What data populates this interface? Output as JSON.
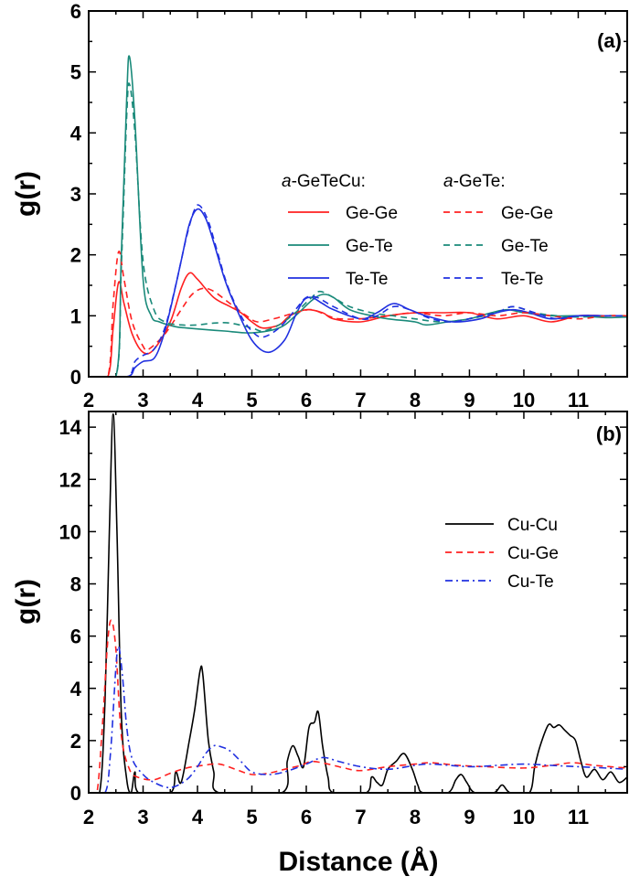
{
  "chart_data": [
    {
      "type": "line",
      "panel_label": "(a)",
      "ylabel": "g(r)",
      "xlim": [
        2,
        11.9
      ],
      "ylim": [
        0,
        6
      ],
      "xticks": [
        "2",
        "3",
        "4",
        "5",
        "6",
        "7",
        "8",
        "9",
        "10",
        "11"
      ],
      "yticks": [
        "0",
        "1",
        "2",
        "3",
        "4",
        "5",
        "6"
      ],
      "legend_placement": "top-right",
      "legend_groups": [
        {
          "prefix": "a",
          "title": "-GeTeCu:"
        },
        {
          "prefix": "a",
          "title": "-GeTe:"
        }
      ],
      "series": [
        {
          "name": "Ge-Ge",
          "group": 0,
          "color": "#ff2020",
          "dash": "solid",
          "x": [
            2,
            2.35,
            2.45,
            2.55,
            2.65,
            2.8,
            3.0,
            3.2,
            3.5,
            3.7,
            3.85,
            4.0,
            4.3,
            4.6,
            4.8,
            5.0,
            5.2,
            5.5,
            5.7,
            6.0,
            6.3,
            6.5,
            7.0,
            7.5,
            8.0,
            8.5,
            9.0,
            9.5,
            10.0,
            10.5,
            11.0,
            11.5,
            11.9
          ],
          "y": [
            0,
            0,
            0.8,
            1.55,
            1.2,
            0.7,
            0.4,
            0.45,
            0.9,
            1.45,
            1.7,
            1.6,
            1.3,
            1.15,
            1.05,
            0.9,
            0.8,
            0.85,
            1.0,
            1.1,
            1.05,
            0.95,
            0.9,
            1.0,
            1.05,
            1.05,
            1.05,
            0.95,
            1.0,
            0.9,
            1.0,
            1.0,
            1.0
          ]
        },
        {
          "name": "Ge-Te",
          "group": 0,
          "color": "#1a8a7a",
          "dash": "solid",
          "x": [
            2,
            2.5,
            2.6,
            2.7,
            2.75,
            2.85,
            3.0,
            3.15,
            3.3,
            3.6,
            3.8,
            4.2,
            4.5,
            5.0,
            5.5,
            5.8,
            6.1,
            6.3,
            6.5,
            6.8,
            7.2,
            7.5,
            8.0,
            8.2,
            8.6,
            9.0,
            9.4,
            9.7,
            10.0,
            10.5,
            11.0,
            11.5,
            11.9
          ],
          "y": [
            0,
            0,
            2.0,
            4.6,
            5.25,
            4.2,
            1.6,
            1.0,
            0.9,
            0.82,
            0.8,
            0.77,
            0.75,
            0.72,
            0.8,
            1.0,
            1.25,
            1.35,
            1.3,
            1.1,
            1.0,
            0.95,
            0.9,
            0.85,
            0.9,
            0.95,
            1.05,
            1.1,
            1.05,
            1.0,
            1.0,
            0.97,
            0.98
          ]
        },
        {
          "name": "Te-Te",
          "group": 0,
          "color": "#2030e0",
          "dash": "solid",
          "x": [
            2,
            2.7,
            2.85,
            3.0,
            3.2,
            3.35,
            3.5,
            3.7,
            3.85,
            4.0,
            4.15,
            4.3,
            4.5,
            4.7,
            5.0,
            5.3,
            5.6,
            5.8,
            5.95,
            6.1,
            6.3,
            6.5,
            7.0,
            7.3,
            7.6,
            7.9,
            8.2,
            8.7,
            9.2,
            9.5,
            9.8,
            10.1,
            10.5,
            11.0,
            11.5,
            11.9
          ],
          "y": [
            0,
            0,
            0.15,
            0.25,
            0.3,
            0.6,
            1.1,
            1.9,
            2.5,
            2.75,
            2.6,
            2.2,
            1.6,
            1.15,
            0.6,
            0.4,
            0.6,
            1.0,
            1.25,
            1.3,
            1.2,
            1.1,
            0.95,
            1.05,
            1.2,
            1.1,
            1.0,
            0.9,
            0.95,
            1.05,
            1.1,
            1.05,
            0.95,
            1.0,
            1.0,
            1.0
          ]
        },
        {
          "name": "Ge-Ge",
          "group": 1,
          "color": "#ff2020",
          "dash": "dashed",
          "x": [
            2,
            2.35,
            2.45,
            2.55,
            2.65,
            2.8,
            3.0,
            3.1,
            3.4,
            3.7,
            3.9,
            4.1,
            4.3,
            4.6,
            4.9,
            5.1,
            5.4,
            5.6,
            5.8,
            6.1,
            6.4,
            6.6,
            7.0,
            7.5,
            8.0,
            8.5,
            9.0,
            9.5,
            10.0,
            10.5,
            11.0,
            11.5,
            11.9
          ],
          "y": [
            0,
            0,
            1.2,
            2.05,
            1.6,
            0.9,
            0.5,
            0.45,
            0.7,
            1.1,
            1.35,
            1.45,
            1.4,
            1.2,
            1.0,
            0.9,
            0.95,
            1.0,
            1.05,
            1.1,
            1.0,
            0.95,
            0.95,
            1.0,
            1.05,
            1.0,
            1.05,
            1.0,
            1.05,
            1.0,
            0.95,
            1.0,
            1.0
          ]
        },
        {
          "name": "Ge-Te",
          "group": 1,
          "color": "#1a8a7a",
          "dash": "dashed",
          "x": [
            2,
            2.5,
            2.6,
            2.7,
            2.75,
            2.85,
            3.0,
            3.2,
            3.4,
            3.7,
            4.0,
            4.3,
            4.6,
            5.0,
            5.2,
            5.5,
            5.8,
            6.1,
            6.25,
            6.5,
            6.8,
            7.2,
            7.6,
            8.0,
            8.5,
            9.0,
            9.5,
            9.8,
            10.2,
            10.6,
            11.0,
            11.5,
            11.9
          ],
          "y": [
            0,
            0,
            1.8,
            4.3,
            4.8,
            4.0,
            1.9,
            1.1,
            0.9,
            0.85,
            0.85,
            0.88,
            0.88,
            0.8,
            0.75,
            0.85,
            1.05,
            1.3,
            1.4,
            1.3,
            1.15,
            1.05,
            1.0,
            0.95,
            0.9,
            0.95,
            1.05,
            1.15,
            1.05,
            1.0,
            0.98,
            1.0,
            1.0
          ]
        },
        {
          "name": "Te-Te",
          "group": 1,
          "color": "#2030e0",
          "dash": "dashed",
          "x": [
            2,
            2.7,
            2.85,
            3.0,
            3.2,
            3.4,
            3.6,
            3.8,
            3.95,
            4.05,
            4.2,
            4.35,
            4.55,
            4.8,
            5.0,
            5.2,
            5.5,
            5.8,
            6.0,
            6.2,
            6.5,
            7.0,
            7.3,
            7.6,
            7.9,
            8.3,
            8.7,
            9.2,
            9.5,
            9.8,
            10.2,
            10.6,
            11.0,
            11.5,
            11.9
          ],
          "y": [
            0,
            0,
            0.25,
            0.35,
            0.45,
            0.8,
            1.5,
            2.3,
            2.75,
            2.8,
            2.55,
            2.1,
            1.5,
            1.0,
            0.75,
            0.65,
            0.8,
            1.1,
            1.3,
            1.3,
            1.15,
            0.95,
            1.0,
            1.15,
            1.1,
            0.95,
            0.9,
            1.0,
            1.05,
            1.15,
            1.05,
            0.95,
            1.0,
            1.0,
            1.0
          ]
        }
      ]
    },
    {
      "type": "line",
      "panel_label": "(b)",
      "ylabel": "g(r)",
      "xlabel": "Distance (Å)",
      "xlim": [
        2,
        11.9
      ],
      "ylim": [
        0,
        14.6
      ],
      "xticks": [
        "2",
        "3",
        "4",
        "5",
        "6",
        "7",
        "8",
        "9",
        "10",
        "11"
      ],
      "yticks": [
        "0",
        "2",
        "4",
        "6",
        "8",
        "10",
        "12",
        "14"
      ],
      "legend_placement": "top-right",
      "series": [
        {
          "name": "Cu-Cu",
          "color": "#000000",
          "dash": "solid",
          "x": [
            2,
            2.2,
            2.3,
            2.38,
            2.45,
            2.52,
            2.6,
            2.7,
            2.78,
            2.85,
            2.92,
            3.5,
            3.6,
            3.7,
            3.85,
            3.95,
            4.05,
            4.1,
            4.2,
            4.3,
            4.4,
            5.55,
            5.65,
            5.75,
            5.85,
            5.95,
            6.05,
            6.15,
            6.22,
            6.3,
            6.4,
            6.5,
            7.1,
            7.2,
            7.3,
            7.4,
            7.5,
            7.65,
            7.8,
            7.95,
            8.05,
            8.15,
            8.6,
            8.75,
            8.85,
            8.95,
            9.1,
            9.45,
            9.6,
            9.75,
            10.1,
            10.2,
            10.3,
            10.45,
            10.55,
            10.65,
            10.75,
            10.85,
            10.95,
            11.05,
            11.15,
            11.3,
            11.45,
            11.6,
            11.75,
            11.9
          ],
          "y": [
            0,
            0,
            3.5,
            10,
            14.5,
            10,
            3,
            0.5,
            0,
            0.8,
            0,
            0,
            0.8,
            0.4,
            2,
            3.2,
            4.7,
            4.5,
            2,
            0.8,
            0,
            0,
            1.2,
            1.8,
            1.4,
            1.0,
            2.5,
            2.7,
            3.1,
            1.8,
            0.6,
            0,
            0,
            0.6,
            0.4,
            0.3,
            0.9,
            1.2,
            1.5,
            0.9,
            0.3,
            0,
            0,
            0.5,
            0.7,
            0.4,
            0,
            0,
            0.3,
            0,
            0,
            1.0,
            1.8,
            2.6,
            2.5,
            2.6,
            2.4,
            2.2,
            2.0,
            1.2,
            0.6,
            0.9,
            0.5,
            0.8,
            0.4,
            0.6
          ]
        },
        {
          "name": "Cu-Ge",
          "color": "#ff2020",
          "dash": "dashed",
          "x": [
            2,
            2.15,
            2.25,
            2.35,
            2.42,
            2.5,
            2.6,
            2.75,
            2.9,
            3.2,
            3.5,
            3.8,
            4.1,
            4.4,
            4.7,
            5.0,
            5.3,
            5.6,
            5.9,
            6.1,
            6.4,
            6.7,
            7.0,
            7.5,
            8.0,
            8.3,
            8.8,
            9.3,
            10.0,
            10.5,
            10.9,
            11.3,
            11.9
          ],
          "y": [
            0,
            0,
            2.5,
            5.8,
            6.6,
            5.5,
            2.2,
            0.9,
            0.6,
            0.5,
            0.75,
            0.95,
            1.05,
            1.1,
            0.9,
            0.7,
            0.75,
            0.9,
            1.05,
            1.2,
            1.1,
            0.95,
            0.85,
            1.0,
            1.1,
            1.15,
            1.05,
            1.0,
            0.95,
            1.05,
            1.15,
            1.05,
            0.95
          ]
        },
        {
          "name": "Cu-Te",
          "color": "#2030e0",
          "dash": "dashdot",
          "x": [
            2,
            2.3,
            2.4,
            2.5,
            2.55,
            2.62,
            2.7,
            2.8,
            3.0,
            3.2,
            3.5,
            3.8,
            4.0,
            4.15,
            4.3,
            4.45,
            4.6,
            4.8,
            5.0,
            5.3,
            5.6,
            6.0,
            6.3,
            6.6,
            7.0,
            7.5,
            8.0,
            8.3,
            9.0,
            9.5,
            10.0,
            10.5,
            11.0,
            11.5,
            11.9
          ],
          "y": [
            0,
            0,
            1.5,
            4.8,
            5.6,
            4.5,
            2.5,
            1.3,
            0.7,
            0.4,
            0.2,
            0.5,
            1.0,
            1.5,
            1.8,
            1.75,
            1.6,
            1.2,
            0.8,
            0.7,
            0.8,
            1.1,
            1.35,
            1.2,
            1.0,
            0.9,
            1.05,
            1.1,
            1.0,
            1.05,
            1.1,
            1.05,
            1.0,
            0.95,
            0.9
          ]
        }
      ]
    }
  ]
}
